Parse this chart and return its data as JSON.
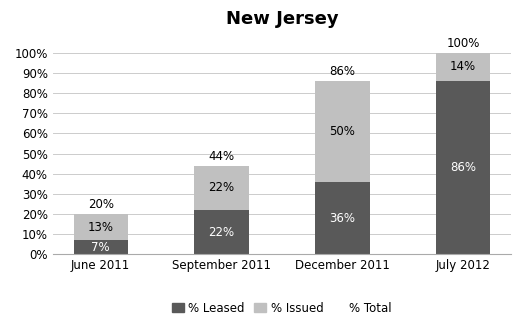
{
  "title": "New Jersey",
  "categories": [
    "June 2011",
    "September 2011",
    "December 2011",
    "July 2012"
  ],
  "leased": [
    7,
    22,
    36,
    86
  ],
  "issued": [
    13,
    22,
    50,
    14
  ],
  "total": [
    20,
    44,
    86,
    100
  ],
  "color_leased": "#595959",
  "color_issued": "#c0c0c0",
  "ylim": [
    0,
    110
  ],
  "yticks": [
    0,
    10,
    20,
    30,
    40,
    50,
    60,
    70,
    80,
    90,
    100
  ],
  "ytick_labels": [
    "0%",
    "10%",
    "20%",
    "30%",
    "40%",
    "50%",
    "60%",
    "70%",
    "80%",
    "90%",
    "100%"
  ],
  "title_fontsize": 13,
  "label_fontsize": 8.5,
  "legend_fontsize": 8.5,
  "bar_width": 0.45
}
